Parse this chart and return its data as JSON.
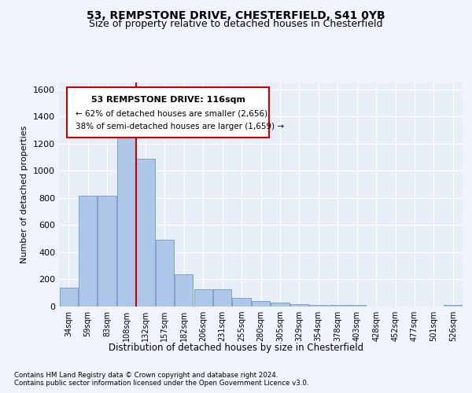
{
  "title1": "53, REMPSTONE DRIVE, CHESTERFIELD, S41 0YB",
  "title2": "Size of property relative to detached houses in Chesterfield",
  "xlabel": "Distribution of detached houses by size in Chesterfield",
  "ylabel": "Number of detached properties",
  "footer1": "Contains HM Land Registry data © Crown copyright and database right 2024.",
  "footer2": "Contains public sector information licensed under the Open Government Licence v3.0.",
  "annotation_line1": "53 REMPSTONE DRIVE: 116sqm",
  "annotation_line2": "← 62% of detached houses are smaller (2,656)",
  "annotation_line3": "38% of semi-detached houses are larger (1,659) →",
  "bar_color": "#aec6e8",
  "bar_edge_color": "#5a8fc0",
  "vline_color": "#cc0000",
  "background_color": "#f0f4ff",
  "plot_bg_color": "#e8eef8",
  "grid_color": "#ffffff",
  "categories": [
    "34sqm",
    "59sqm",
    "83sqm",
    "108sqm",
    "132sqm",
    "157sqm",
    "182sqm",
    "206sqm",
    "231sqm",
    "255sqm",
    "280sqm",
    "305sqm",
    "329sqm",
    "354sqm",
    "378sqm",
    "403sqm",
    "428sqm",
    "452sqm",
    "477sqm",
    "501sqm",
    "526sqm"
  ],
  "values": [
    140,
    815,
    815,
    1285,
    1090,
    495,
    238,
    128,
    128,
    65,
    38,
    28,
    15,
    14,
    14,
    14,
    0,
    0,
    0,
    0,
    14
  ],
  "vline_pos": 3.5,
  "ylim": [
    0,
    1650
  ],
  "yticks": [
    0,
    200,
    400,
    600,
    800,
    1000,
    1200,
    1400,
    1600
  ]
}
